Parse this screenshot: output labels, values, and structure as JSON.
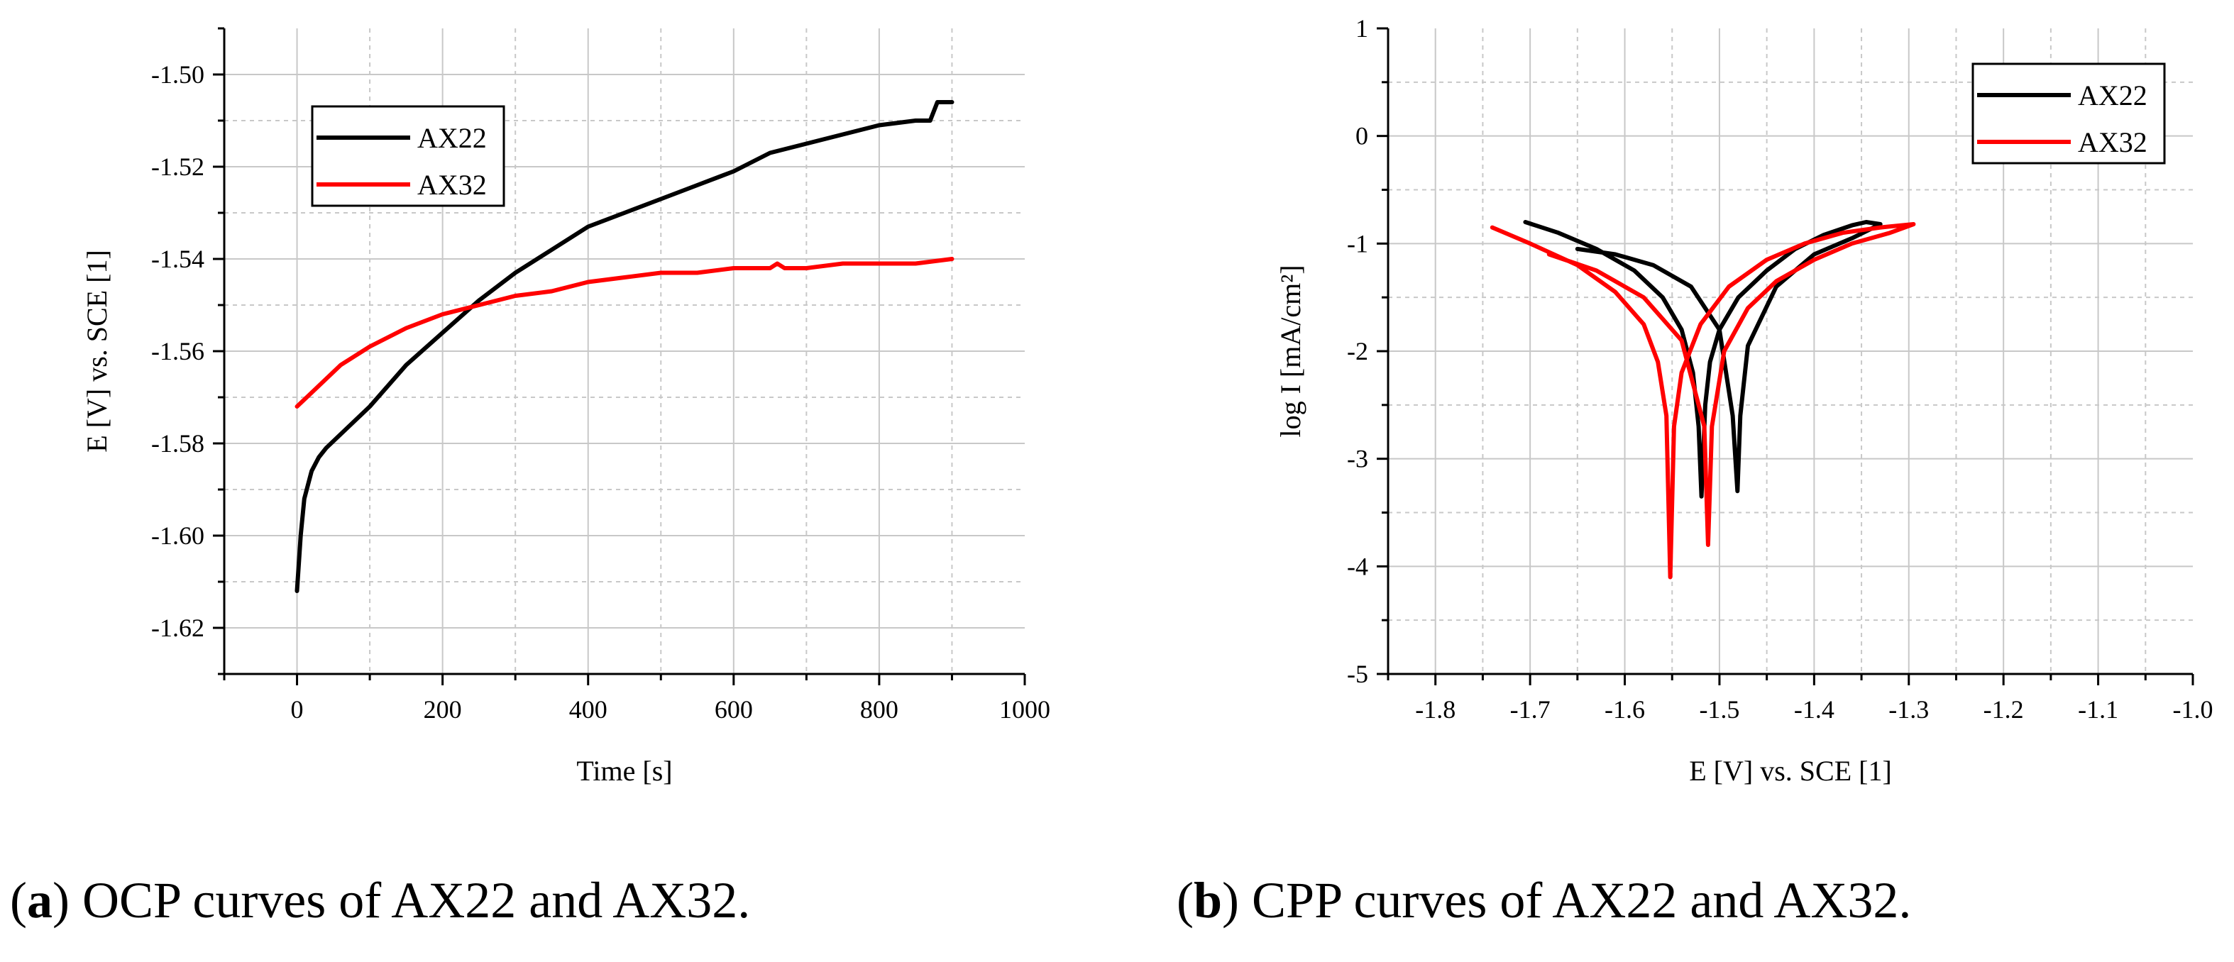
{
  "captions": [
    {
      "letter": "a",
      "text": "OCP curves of AX22 and AX32."
    },
    {
      "letter": "b",
      "text": "CPP curves of AX22 and AX32."
    }
  ],
  "chart_data": [
    {
      "type": "line",
      "title": "",
      "xlabel": "Time [s]",
      "ylabel": "E [V] vs. SCE [1]",
      "xlim": [
        -100,
        1000
      ],
      "ylim": [
        -1.63,
        -1.49
      ],
      "xticks": [
        0,
        200,
        400,
        600,
        800,
        1000
      ],
      "xtick_labels": [
        "0",
        "200",
        "400",
        "600",
        "800",
        "1000"
      ],
      "yticks": [
        -1.62,
        -1.6,
        -1.58,
        -1.56,
        -1.54,
        -1.52,
        -1.5
      ],
      "ytick_labels": [
        "-1.62",
        "-1.60",
        "-1.58",
        "-1.56",
        "-1.54",
        "-1.52",
        "-1.50"
      ],
      "grid": true,
      "legend": "top-left",
      "series": [
        {
          "name": "AX22",
          "color": "#000000",
          "x": [
            0,
            5,
            10,
            20,
            30,
            40,
            60,
            80,
            100,
            150,
            200,
            250,
            300,
            350,
            400,
            450,
            500,
            550,
            600,
            650,
            700,
            750,
            800,
            850,
            870,
            880,
            890,
            900
          ],
          "y": [
            -1.612,
            -1.6,
            -1.592,
            -1.586,
            -1.583,
            -1.581,
            -1.578,
            -1.575,
            -1.572,
            -1.563,
            -1.556,
            -1.549,
            -1.543,
            -1.538,
            -1.533,
            -1.53,
            -1.527,
            -1.524,
            -1.521,
            -1.517,
            -1.515,
            -1.513,
            -1.511,
            -1.51,
            -1.51,
            -1.506,
            -1.506,
            -1.506
          ]
        },
        {
          "name": "AX32",
          "color": "#ff0000",
          "x": [
            0,
            20,
            40,
            60,
            80,
            100,
            150,
            200,
            250,
            300,
            350,
            400,
            450,
            500,
            550,
            600,
            650,
            660,
            670,
            700,
            750,
            800,
            850,
            900
          ],
          "y": [
            -1.572,
            -1.569,
            -1.566,
            -1.563,
            -1.561,
            -1.559,
            -1.555,
            -1.552,
            -1.55,
            -1.548,
            -1.547,
            -1.545,
            -1.544,
            -1.543,
            -1.543,
            -1.542,
            -1.542,
            -1.541,
            -1.542,
            -1.542,
            -1.541,
            -1.541,
            -1.541,
            -1.54
          ]
        }
      ]
    },
    {
      "type": "line",
      "title": "",
      "xlabel": "E [V] vs. SCE [1]",
      "ylabel": "log I [mA/cm²]",
      "xlim": [
        -1.85,
        -1.0
      ],
      "ylim": [
        -5,
        1
      ],
      "xticks": [
        -1.8,
        -1.7,
        -1.6,
        -1.5,
        -1.4,
        -1.3,
        -1.2,
        -1.1,
        -1.0
      ],
      "xtick_labels": [
        "-1.8",
        "-1.7",
        "-1.6",
        "-1.5",
        "-1.4",
        "-1.3",
        "-1.2",
        "-1.1",
        "-1.0"
      ],
      "yticks": [
        -5,
        -4,
        -3,
        -2,
        -1,
        0,
        1
      ],
      "ytick_labels": [
        "-5",
        "-4",
        "-3",
        "-2",
        "-1",
        "0",
        "1"
      ],
      "grid": true,
      "legend": "top-right",
      "series": [
        {
          "name": "AX22",
          "color": "#000000",
          "x": [
            -1.705,
            -1.67,
            -1.63,
            -1.59,
            -1.56,
            -1.54,
            -1.528,
            -1.522,
            -1.519,
            -1.515,
            -1.51,
            -1.5,
            -1.48,
            -1.45,
            -1.42,
            -1.39,
            -1.36,
            -1.345,
            -1.33,
            -1.36,
            -1.4,
            -1.44,
            -1.47,
            -1.478,
            -1.481,
            -1.486,
            -1.5,
            -1.53,
            -1.57,
            -1.61,
            -1.65
          ],
          "y": [
            -0.8,
            -0.9,
            -1.05,
            -1.25,
            -1.5,
            -1.8,
            -2.2,
            -2.7,
            -3.35,
            -2.5,
            -2.1,
            -1.8,
            -1.5,
            -1.25,
            -1.05,
            -0.92,
            -0.83,
            -0.8,
            -0.82,
            -0.95,
            -1.1,
            -1.4,
            -1.95,
            -2.6,
            -3.3,
            -2.6,
            -1.8,
            -1.4,
            -1.2,
            -1.1,
            -1.05
          ]
        },
        {
          "name": "AX32",
          "color": "#ff0000",
          "x": [
            -1.74,
            -1.7,
            -1.65,
            -1.61,
            -1.58,
            -1.565,
            -1.556,
            -1.552,
            -1.548,
            -1.54,
            -1.52,
            -1.49,
            -1.45,
            -1.41,
            -1.37,
            -1.33,
            -1.295,
            -1.32,
            -1.36,
            -1.4,
            -1.44,
            -1.47,
            -1.495,
            -1.508,
            -1.512,
            -1.516,
            -1.54,
            -1.58,
            -1.63,
            -1.68
          ],
          "y": [
            -0.85,
            -1.0,
            -1.2,
            -1.45,
            -1.75,
            -2.1,
            -2.6,
            -4.1,
            -2.7,
            -2.2,
            -1.75,
            -1.4,
            -1.15,
            -1.0,
            -0.9,
            -0.85,
            -0.82,
            -0.9,
            -1.0,
            -1.15,
            -1.35,
            -1.6,
            -2.0,
            -2.7,
            -3.8,
            -2.7,
            -1.9,
            -1.5,
            -1.25,
            -1.1
          ]
        }
      ]
    }
  ]
}
